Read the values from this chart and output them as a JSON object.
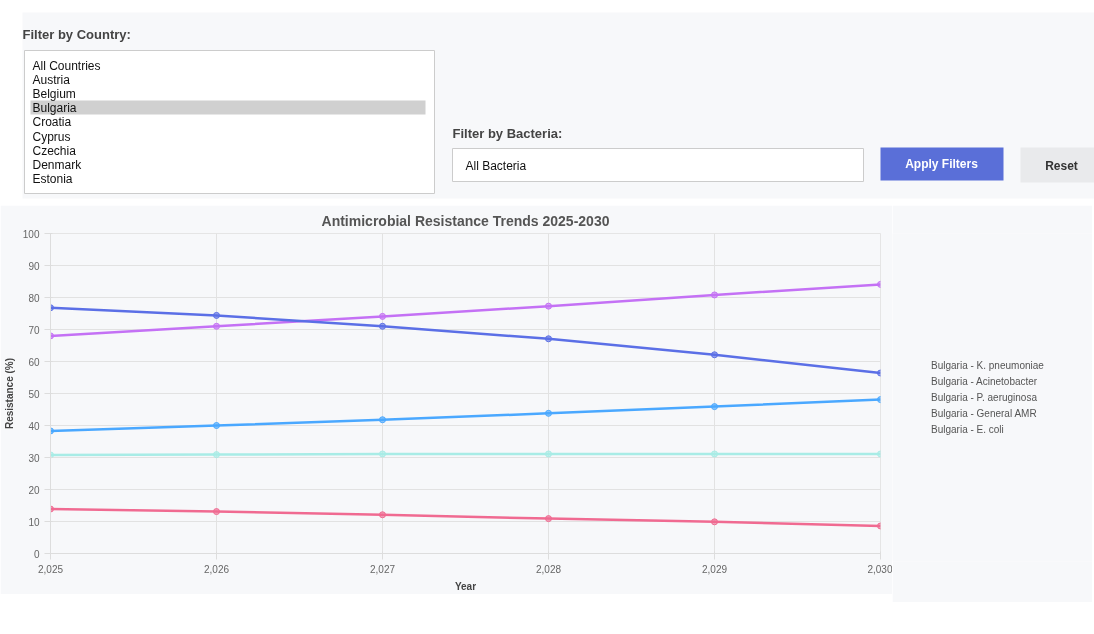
{
  "chart_data": [
    {
      "type": "other",
      "annotations": [
        "Filter by Country:",
        "All Countries",
        "Austria",
        "Belgium",
        "Bulgaria",
        "Croatia",
        "Cyprus",
        "Czechia",
        "Denmark",
        "Estonia",
        "Filter by Bacteria:",
        "All Bacteria",
        "Apply Filters",
        "Reset"
      ]
    },
    {
      "type": "line",
      "title": "Antimicrobial Resistance Trends 2025-2030",
      "xlabel": "Year",
      "ylabel": "Resistance (%)",
      "x": [
        2025,
        2026,
        2027,
        2028,
        2029,
        2030
      ],
      "xlim": [
        2025,
        2030
      ],
      "xticks": [
        {
          "value": 2025,
          "label": "2,025"
        },
        {
          "value": 2026,
          "label": "2,026"
        },
        {
          "value": 2027,
          "label": "2,027"
        },
        {
          "value": 2028,
          "label": "2,028"
        },
        {
          "value": 2029,
          "label": "2,029"
        },
        {
          "value": 2030,
          "label": "2,030"
        }
      ],
      "ylim": [
        0,
        100
      ],
      "yticks": [
        0,
        10,
        20,
        30,
        40,
        50,
        60,
        70,
        80,
        90,
        100
      ],
      "grid": true,
      "legend": "right",
      "marker": "circle",
      "line_style": "solid",
      "series": [
        {
          "name": "Bulgaria - K. pneumoniae",
          "color": "#c471f5",
          "values": [
            68.0,
            71.0,
            74.1,
            77.3,
            80.8,
            84.1
          ]
        },
        {
          "name": "Bulgaria - Acinetobacter",
          "color": "#5b6fe6",
          "values": [
            76.8,
            74.4,
            71.0,
            67.1,
            62.1,
            56.4
          ]
        },
        {
          "name": "Bulgaria - P. aeruginosa",
          "color": "#4aa8ff",
          "values": [
            38.3,
            40.0,
            41.8,
            43.8,
            45.9,
            48.1
          ]
        },
        {
          "name": "Bulgaria - General AMR",
          "color": "#a8ece6",
          "values": [
            30.8,
            30.9,
            31.1,
            31.1,
            31.1,
            31.1
          ]
        },
        {
          "name": "Bulgaria - E. coli",
          "color": "#f06a91",
          "values": [
            13.9,
            13.1,
            12.1,
            10.9,
            9.9,
            8.6
          ]
        }
      ]
    }
  ]
}
